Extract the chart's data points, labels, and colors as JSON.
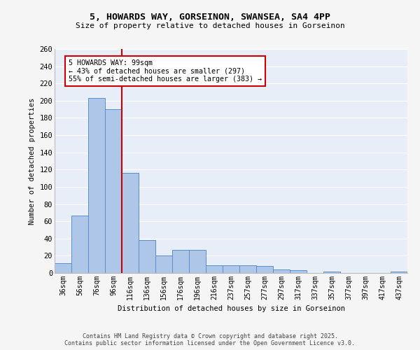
{
  "title_line1": "5, HOWARDS WAY, GORSEINON, SWANSEA, SA4 4PP",
  "title_line2": "Size of property relative to detached houses in Gorseinon",
  "xlabel": "Distribution of detached houses by size in Gorseinon",
  "ylabel": "Number of detached properties",
  "bar_labels": [
    "36sqm",
    "56sqm",
    "76sqm",
    "96sqm",
    "116sqm",
    "136sqm",
    "156sqm",
    "176sqm",
    "196sqm",
    "216sqm",
    "237sqm",
    "257sqm",
    "277sqm",
    "297sqm",
    "317sqm",
    "337sqm",
    "357sqm",
    "377sqm",
    "397sqm",
    "417sqm",
    "437sqm"
  ],
  "bar_values": [
    11,
    67,
    203,
    190,
    116,
    38,
    20,
    27,
    27,
    9,
    9,
    9,
    8,
    4,
    3,
    0,
    2,
    0,
    0,
    0,
    2
  ],
  "bar_color": "#aec6e8",
  "bar_edge_color": "#5b8fc9",
  "vline_x": 3.5,
  "vline_color": "#cc0000",
  "annotation_text": "5 HOWARDS WAY: 99sqm\n← 43% of detached houses are smaller (297)\n55% of semi-detached houses are larger (383) →",
  "box_color": "#cc0000",
  "bg_color": "#e8eef7",
  "grid_color": "#ffffff",
  "footer_line1": "Contains HM Land Registry data © Crown copyright and database right 2025.",
  "footer_line2": "Contains public sector information licensed under the Open Government Licence v3.0.",
  "ylim": [
    0,
    260
  ],
  "yticks": [
    0,
    20,
    40,
    60,
    80,
    100,
    120,
    140,
    160,
    180,
    200,
    220,
    240,
    260
  ]
}
